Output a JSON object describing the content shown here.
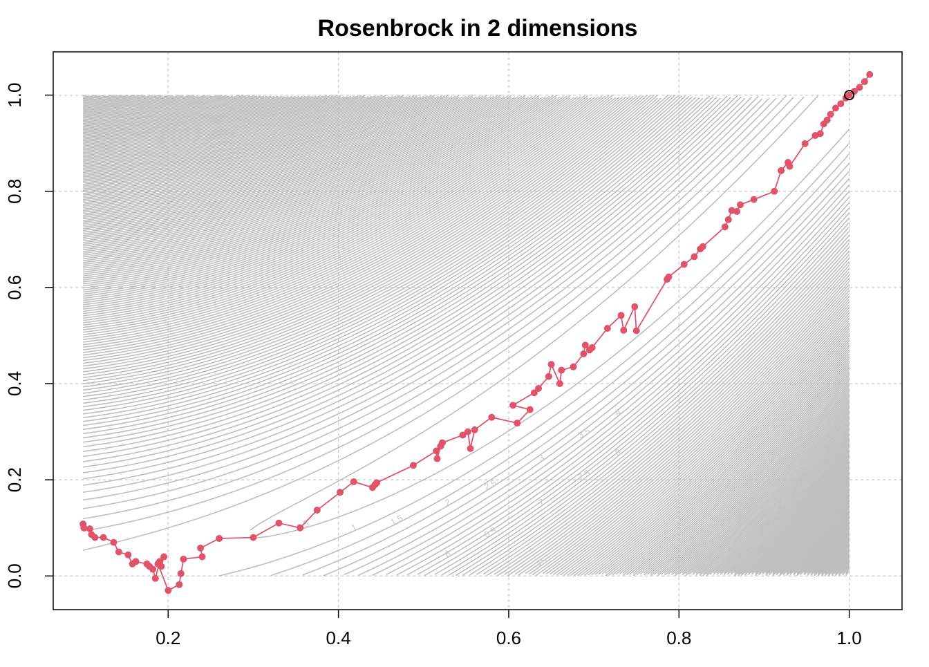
{
  "chart_data": {
    "type": "line",
    "title": "Rosenbrock in 2 dimensions",
    "xlabel": "",
    "ylabel": "",
    "xlim": [
      0.065,
      1.062
    ],
    "ylim": [
      -0.07,
      1.09
    ],
    "xticks": [
      "0.2",
      "0.4",
      "0.6",
      "0.8",
      "1.0"
    ],
    "yticks": [
      "0.0",
      "0.2",
      "0.4",
      "0.6",
      "0.8",
      "1.0"
    ],
    "grid": true,
    "background": {
      "type": "contour",
      "function": "rosenbrock",
      "region_x": [
        0.1,
        1.0
      ],
      "region_y": [
        0.0,
        1.0
      ],
      "color": "#bebebe",
      "visible_labels": [
        "0.5",
        "1",
        "1.5",
        "2",
        "2.5",
        "3",
        "3.5",
        "4",
        "4.5",
        "5",
        "5.5",
        "6",
        "6.5",
        "7",
        "7.5",
        "8",
        "9",
        "9.5",
        "10",
        "12",
        "13",
        "15"
      ]
    },
    "optimum": {
      "x": 1.0,
      "y": 1.0
    },
    "series": [
      {
        "color": "#DF536B",
        "x": [
          0.1,
          0.101,
          0.108,
          0.11,
          0.114,
          0.124,
          0.136,
          0.142,
          0.153,
          0.158,
          0.162,
          0.175,
          0.178,
          0.182,
          0.185,
          0.19,
          0.195,
          0.192,
          0.188,
          0.2,
          0.213,
          0.215,
          0.218,
          0.24,
          0.238,
          0.26,
          0.3,
          0.33,
          0.355,
          0.375,
          0.402,
          0.418,
          0.44,
          0.443,
          0.445,
          0.488,
          0.515,
          0.516,
          0.52,
          0.522,
          0.546,
          0.552,
          0.555,
          0.56,
          0.58,
          0.61,
          0.625,
          0.605,
          0.63,
          0.635,
          0.647,
          0.65,
          0.66,
          0.662,
          0.676,
          0.688,
          0.69,
          0.695,
          0.698,
          0.716,
          0.732,
          0.735,
          0.748,
          0.75,
          0.786,
          0.788,
          0.806,
          0.818,
          0.825,
          0.828,
          0.854,
          0.858,
          0.862,
          0.868,
          0.872,
          0.888,
          0.912,
          0.92,
          0.928,
          0.93,
          0.948,
          0.96,
          0.966,
          0.97,
          0.974,
          0.978,
          0.984,
          0.99,
          0.996,
          1.0,
          1.006,
          1.012,
          1.018,
          1.024
        ],
        "y": [
          0.108,
          0.1,
          0.098,
          0.086,
          0.08,
          0.08,
          0.07,
          0.05,
          0.044,
          0.025,
          0.03,
          0.025,
          0.02,
          0.014,
          -0.005,
          0.03,
          0.04,
          0.02,
          0.025,
          -0.03,
          -0.018,
          0.005,
          0.035,
          0.04,
          0.058,
          0.078,
          0.08,
          0.11,
          0.1,
          0.137,
          0.174,
          0.196,
          0.184,
          0.19,
          0.194,
          0.23,
          0.26,
          0.244,
          0.27,
          0.277,
          0.293,
          0.3,
          0.265,
          0.304,
          0.33,
          0.318,
          0.346,
          0.355,
          0.381,
          0.39,
          0.415,
          0.44,
          0.4,
          0.428,
          0.435,
          0.462,
          0.48,
          0.47,
          0.475,
          0.515,
          0.542,
          0.511,
          0.56,
          0.51,
          0.617,
          0.622,
          0.648,
          0.664,
          0.68,
          0.685,
          0.726,
          0.741,
          0.76,
          0.758,
          0.772,
          0.783,
          0.8,
          0.843,
          0.86,
          0.852,
          0.899,
          0.916,
          0.92,
          0.94,
          0.948,
          0.96,
          0.973,
          0.982,
          0.994,
          1.0,
          1.008,
          1.016,
          1.028,
          1.043
        ]
      }
    ]
  }
}
